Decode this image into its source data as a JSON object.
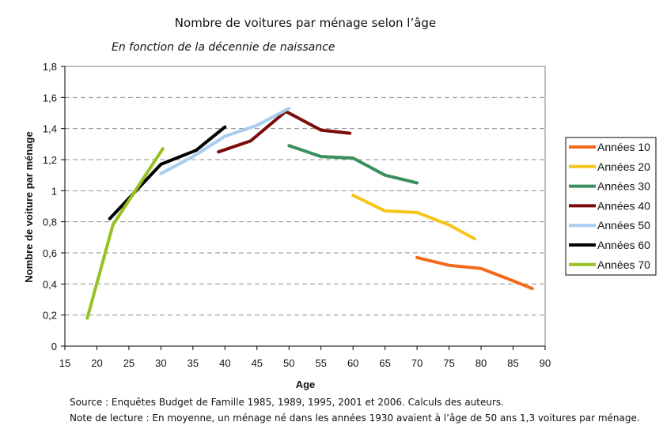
{
  "chart_data": {
    "type": "line",
    "title": "Nombre de voitures par ménage selon l’âge",
    "subtitle": "En fonction de la décennie de naissance",
    "xlabel": "Age",
    "ylabel": "Nombre de voiture par ménage",
    "xlim": [
      15,
      90
    ],
    "ylim": [
      0,
      1.8
    ],
    "xticks": [
      "15",
      "20",
      "25",
      "30",
      "35",
      "40",
      "45",
      "50",
      "55",
      "60",
      "65",
      "70",
      "75",
      "80",
      "85",
      "90"
    ],
    "yticks": [
      "0",
      "0,2",
      "0,4",
      "0,6",
      "0,8",
      "1",
      "1,2",
      "1,4",
      "1,6",
      "1,8"
    ],
    "grid": true,
    "legend_position": "right",
    "series": [
      {
        "name": "Années 10",
        "color": "#F26B1D",
        "x": [
          70,
          75,
          80,
          85,
          88
        ],
        "y": [
          0.57,
          0.52,
          0.5,
          0.42,
          0.37
        ]
      },
      {
        "name": "Années 20",
        "color": "#F7C51A",
        "x": [
          60,
          65,
          70,
          75,
          79
        ],
        "y": [
          0.97,
          0.87,
          0.86,
          0.78,
          0.69
        ]
      },
      {
        "name": "Années 30",
        "color": "#3A8F5E",
        "x": [
          50,
          55,
          60,
          65,
          70
        ],
        "y": [
          1.29,
          1.22,
          1.21,
          1.1,
          1.05
        ]
      },
      {
        "name": "Années 40",
        "color": "#7B0A0A",
        "x": [
          39,
          44,
          49.5,
          55,
          59.5
        ],
        "y": [
          1.25,
          1.32,
          1.51,
          1.39,
          1.37
        ]
      },
      {
        "name": "Années 50",
        "color": "#A7CDF0",
        "x": [
          30,
          35,
          40,
          45,
          50
        ],
        "y": [
          1.11,
          1.22,
          1.35,
          1.42,
          1.53
        ]
      },
      {
        "name": "Années 60",
        "color": "#000000",
        "x": [
          22,
          30,
          35.5,
          40
        ],
        "y": [
          0.82,
          1.17,
          1.26,
          1.41
        ]
      },
      {
        "name": "Années 70",
        "color": "#97C11F",
        "x": [
          18.5,
          22.5,
          30.3
        ],
        "y": [
          0.18,
          0.78,
          1.27
        ]
      }
    ]
  },
  "notes": {
    "source": "Source : Enquêtes Budget de Famille 1985, 1989, 1995, 2001 et 2006. Calculs des auteurs.",
    "reading": "Note de lecture : En moyenne, un ménage né dans les années 1930 avaient à l’âge de 50 ans 1,3 voitures par ménage."
  }
}
